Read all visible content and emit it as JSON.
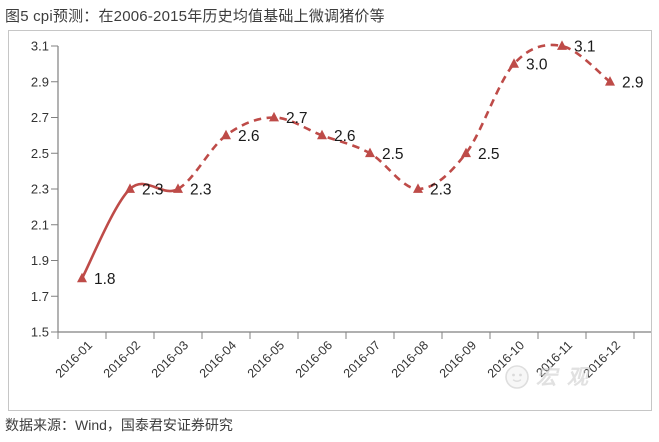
{
  "page": {
    "title": "图5 cpi预测：在2006-2015年历史均值基础上微调猪价等",
    "source_note": "数据来源：Wind，国泰君安证券研究",
    "watermark_text": "宏观"
  },
  "chart_data": {
    "type": "line",
    "title": "图5 cpi预测：在2006-2015年历史均值基础上微调猪价等",
    "categories": [
      "2016-01",
      "2016-02",
      "2016-03",
      "2016-04",
      "2016-05",
      "2016-06",
      "2016-07",
      "2016-08",
      "2016-09",
      "2016-10",
      "2016-11",
      "2016-12"
    ],
    "series": [
      {
        "name": "cpi预测",
        "values": [
          1.8,
          2.3,
          2.3,
          2.6,
          2.7,
          2.6,
          2.5,
          2.3,
          2.5,
          3.0,
          3.1,
          2.9
        ],
        "color": "#BE4B48",
        "dashed_from_index": 2,
        "marker": "triangle",
        "smooth": true
      }
    ],
    "data_labels": [
      "1.8",
      "2.3",
      "2.3",
      "2.6",
      "2.7",
      "2.6",
      "2.5",
      "2.3",
      "2.5",
      "3.0",
      "3.1",
      "2.9"
    ],
    "xlabel": "",
    "ylabel": "",
    "ylim": [
      1.5,
      3.1
    ],
    "ytick_step": 0.2,
    "yticks": [
      1.5,
      1.7,
      1.9,
      2.1,
      2.3,
      2.5,
      2.7,
      2.9,
      3.1
    ],
    "grid": false,
    "legend": "none",
    "colors": {
      "line": "#BE4B48",
      "axis": "#808080",
      "tick_label": "#333333",
      "data_label": "#1a1a1a",
      "box_border": "#c6c6c6"
    },
    "source": "数据来源：Wind，国泰君安证券研究"
  }
}
